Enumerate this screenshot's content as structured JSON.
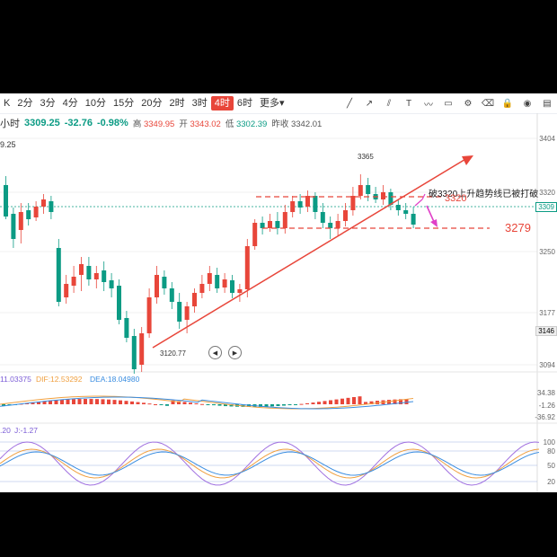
{
  "toolbar": {
    "timeframes": [
      "K",
      "2分",
      "3分",
      "4分",
      "10分",
      "15分",
      "20分",
      "2时",
      "3时",
      "4时",
      "6时",
      "更多▾"
    ],
    "active": "4时"
  },
  "quote": {
    "period": "小时",
    "price": "3309.25",
    "change": "-32.76",
    "change_pct": "-0.98%",
    "high_label": "高",
    "high": "3349.95",
    "open_label": "开",
    "open": "3343.02",
    "low_label": "低",
    "low": "3302.39",
    "prev_label": "昨收",
    "prev": "3342.01"
  },
  "price_axis": {
    "ticks": [
      "3404",
      "3320",
      "3250",
      "3177",
      "3094"
    ],
    "current_tag": "3309",
    "low_tag": "3146",
    "left_badge": "9.25"
  },
  "annotations": {
    "high_point": "3365",
    "low_point": "3120.77",
    "break_note": "破3320上升趋势线已被打破",
    "level_3320": "3320",
    "level_3279": "3279"
  },
  "macd": {
    "label_1": "11.03375",
    "dif": "DIF:12.53292",
    "dea": "DEA:18.04980",
    "ticks": [
      "34.38",
      "-1.26",
      "-36.92"
    ]
  },
  "kdj": {
    "label_1": ".20",
    "label_2": "J:-1.27",
    "ticks": [
      "100",
      "80",
      "50",
      "20"
    ]
  },
  "colors": {
    "up": "#e8463a",
    "down": "#0b9b84",
    "annotation": "#e8463a",
    "arrow": "#e040c8"
  },
  "icons": [
    "line-tool-icon",
    "ray-tool-icon",
    "parallel-tool-icon",
    "text-tool-icon",
    "wave-tool-icon",
    "ruler-tool-icon",
    "settings-icon",
    "eraser-icon",
    "lock-icon",
    "eye-icon",
    "layer-icon"
  ]
}
